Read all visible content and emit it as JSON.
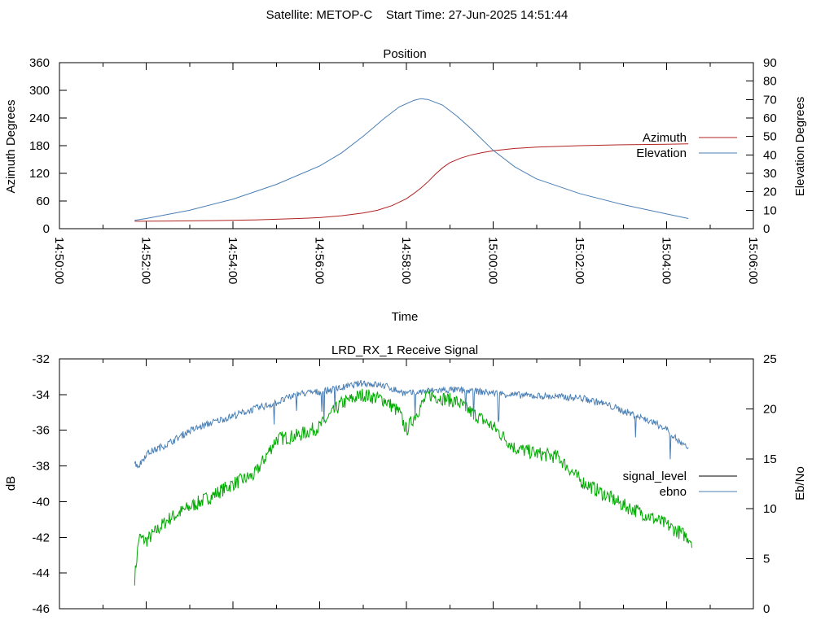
{
  "page": {
    "title": "Satellite: METOP-C    Start Time: 27-Jun-2025 14:51:44"
  },
  "chart_data": [
    {
      "type": "line",
      "title": "Position",
      "xlabel": "Time",
      "ylabel": "Azimuth Degrees",
      "y2label": "Elevation Degrees",
      "xlim": [
        "14:50:00",
        "15:06:00"
      ],
      "ylim": [
        0,
        360
      ],
      "y2lim": [
        0,
        90
      ],
      "x_ticks": [
        "14:50:00",
        "14:52:00",
        "14:54:00",
        "14:56:00",
        "14:58:00",
        "15:00:00",
        "15:02:00",
        "15:04:00",
        "15:06:00"
      ],
      "y_ticks": [
        "0",
        "60",
        "120",
        "180",
        "240",
        "300",
        "360"
      ],
      "y2_ticks": [
        "0",
        "10",
        "20",
        "30",
        "40",
        "50",
        "60",
        "70",
        "80",
        "90"
      ],
      "legend_position": "right",
      "series": [
        {
          "name": "Azimuth",
          "axis": "left",
          "color": "#b22222",
          "x": [
            "14:51:44",
            "14:52:30",
            "14:53:30",
            "14:54:30",
            "14:55:30",
            "14:56:00",
            "14:56:30",
            "14:57:00",
            "14:57:20",
            "14:57:40",
            "14:58:00",
            "14:58:10",
            "14:58:20",
            "14:58:30",
            "14:58:40",
            "14:58:50",
            "14:59:00",
            "14:59:15",
            "14:59:30",
            "14:59:45",
            "15:00:00",
            "15:00:30",
            "15:01:00",
            "15:02:00",
            "15:03:00",
            "15:04:00",
            "15:04:30"
          ],
          "y": [
            16,
            16.5,
            17.5,
            19,
            22,
            24,
            28,
            34,
            40,
            50,
            65,
            76,
            88,
            102,
            118,
            132,
            143,
            153,
            160,
            165,
            169,
            174,
            177,
            180,
            182,
            183,
            184
          ]
        },
        {
          "name": "Elevation",
          "axis": "right",
          "color": "#4a7fb5",
          "x": [
            "14:51:44",
            "14:52:00",
            "14:53:00",
            "14:54:00",
            "14:55:00",
            "14:56:00",
            "14:56:30",
            "14:57:00",
            "14:57:30",
            "14:57:50",
            "14:58:10",
            "14:58:20",
            "14:58:30",
            "14:58:50",
            "14:59:10",
            "14:59:30",
            "15:00:00",
            "15:00:30",
            "15:01:00",
            "15:02:00",
            "15:03:00",
            "15:04:00",
            "15:04:30"
          ],
          "y": [
            4.5,
            5.5,
            10,
            16,
            24,
            34,
            41,
            50,
            60,
            66,
            69.5,
            70.5,
            70,
            67,
            61,
            54,
            42.5,
            33.5,
            27,
            19,
            13,
            8,
            5.5
          ]
        }
      ]
    },
    {
      "type": "line",
      "title": "LRD_RX_1 Receive Signal",
      "xlabel": "",
      "ylabel": "dB",
      "y2label": "Eb/No",
      "ylim": [
        -46,
        -32
      ],
      "y2lim": [
        0,
        25
      ],
      "y_ticks": [
        "-32",
        "-34",
        "-36",
        "-38",
        "-40",
        "-42",
        "-44",
        "-46"
      ],
      "y2_ticks": [
        "0",
        "5",
        "10",
        "15",
        "20",
        "25"
      ],
      "legend_position": "right",
      "series": [
        {
          "name": "signal_level",
          "axis": "left",
          "color": "#00aa00",
          "legend_color": "#000000",
          "x": [
            "14:51:44",
            "14:51:50",
            "14:52:00",
            "14:52:30",
            "14:53:00",
            "14:53:30",
            "14:54:00",
            "14:54:30",
            "14:55:00",
            "14:55:30",
            "14:56:00",
            "14:56:30",
            "14:57:00",
            "14:57:30",
            "14:57:50",
            "14:58:00",
            "14:58:10",
            "14:58:30",
            "14:58:50",
            "14:59:10",
            "14:59:30",
            "15:00:00",
            "15:00:30",
            "15:01:00",
            "15:01:30",
            "15:02:00",
            "15:02:30",
            "15:03:00",
            "15:03:30",
            "15:04:00",
            "15:04:30",
            "15:04:35"
          ],
          "y": [
            -44.3,
            -42,
            -42.2,
            -41,
            -40.3,
            -39.7,
            -39,
            -38.5,
            -36.5,
            -36.3,
            -35.8,
            -34.5,
            -34,
            -34.3,
            -35,
            -36,
            -35.3,
            -34,
            -34.2,
            -34.4,
            -35,
            -35.8,
            -37,
            -37.3,
            -37.5,
            -38.8,
            -39.5,
            -40.2,
            -40.7,
            -41.3,
            -42,
            -42.2
          ]
        },
        {
          "name": "ebno",
          "axis": "right",
          "color": "#4a7fb5",
          "x": [
            "14:51:44",
            "14:51:50",
            "14:52:00",
            "14:52:30",
            "14:53:00",
            "14:53:30",
            "14:54:00",
            "14:54:30",
            "14:55:00",
            "14:55:30",
            "14:56:00",
            "14:56:30",
            "14:57:00",
            "14:57:30",
            "14:58:00",
            "14:58:30",
            "14:59:00",
            "14:59:30",
            "15:00:00",
            "15:00:30",
            "15:01:00",
            "15:01:30",
            "15:02:00",
            "15:02:30",
            "15:03:00",
            "15:03:30",
            "15:04:00",
            "15:04:20",
            "15:04:30"
          ],
          "y": [
            14.6,
            14.3,
            15.5,
            16.5,
            17.8,
            18.6,
            19.3,
            20,
            20.6,
            21.5,
            21.7,
            22.1,
            22.6,
            22.3,
            21.5,
            21.8,
            21.9,
            21.8,
            21.6,
            21.4,
            21.3,
            21.2,
            21.1,
            20.6,
            19.8,
            19,
            18,
            16.5,
            16
          ]
        }
      ]
    }
  ]
}
